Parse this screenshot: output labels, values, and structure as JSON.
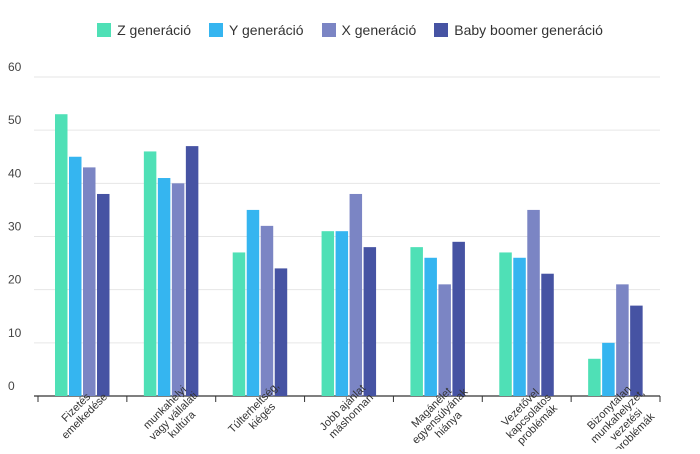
{
  "chart_data": {
    "type": "bar",
    "title": "",
    "xlabel": "",
    "ylabel": "",
    "ylim": [
      0,
      60
    ],
    "yticks": [
      0,
      10,
      20,
      30,
      40,
      50,
      60
    ],
    "grid": true,
    "legend_position": "top",
    "categories": [
      [
        "Fizetés",
        "emelkedése"
      ],
      [
        "munkahelyi",
        "vagy vállalati",
        "kultúra"
      ],
      [
        "Túlterheltség,",
        "kiégés"
      ],
      [
        "Jobb ajánlat",
        "máshonnan"
      ],
      [
        "Magánélet",
        "egyensúlyának",
        "hiánya"
      ],
      [
        "Vezetővel",
        "kapcsolatos",
        "problémák"
      ],
      [
        "Bizonytalan",
        "munkahelyzet,",
        "vezetési",
        "problémák"
      ]
    ],
    "series": [
      {
        "name": "Z generáció",
        "color": "#4fe0b6",
        "values": [
          53,
          46,
          27,
          31,
          28,
          27,
          7
        ]
      },
      {
        "name": "Y generáció",
        "color": "#35b5f0",
        "values": [
          45,
          41,
          35,
          31,
          26,
          26,
          10
        ]
      },
      {
        "name": "X generáció",
        "color": "#7b85c4",
        "values": [
          43,
          40,
          32,
          38,
          21,
          35,
          21
        ]
      },
      {
        "name": "Baby boomer generáció",
        "color": "#4653a3",
        "values": [
          38,
          47,
          24,
          28,
          29,
          23,
          17
        ]
      }
    ]
  }
}
